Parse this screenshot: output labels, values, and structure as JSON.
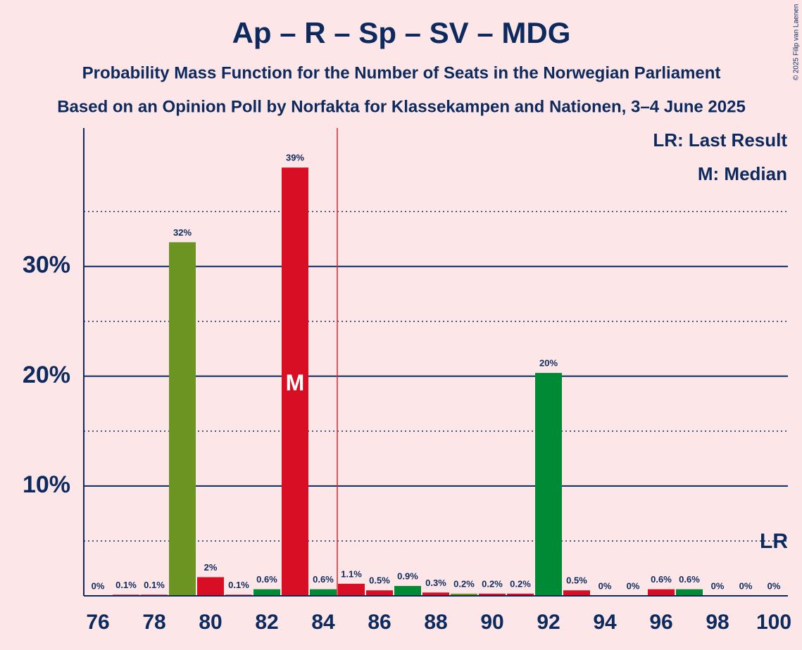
{
  "chart_data": {
    "type": "bar",
    "title": "Ap – R – Sp – SV – MDG",
    "subtitle": "Probability Mass Function for the Number of Seats in the Norwegian Parliament",
    "subtitle2": "Based on an Opinion Poll by Norfakta for Klassekampen and Nationen, 3–4 June 2025",
    "copyright": "© 2025 Filip van Laenen",
    "x": [
      76,
      77,
      78,
      79,
      80,
      81,
      82,
      83,
      84,
      85,
      86,
      87,
      88,
      89,
      90,
      91,
      92,
      93,
      94,
      95,
      96,
      97,
      98,
      99,
      100
    ],
    "values": [
      0,
      0.1,
      0.1,
      32.2,
      1.7,
      0.1,
      0.6,
      39,
      0.6,
      1.1,
      0.5,
      0.9,
      0.3,
      0.2,
      0.2,
      0.2,
      20.3,
      0.5,
      0,
      0,
      0.6,
      0.6,
      0,
      0,
      0
    ],
    "value_labels": [
      "0%",
      "0.1%",
      "0.1%",
      "32%",
      "2%",
      "0.1%",
      "0.6%",
      "39%",
      "0.6%",
      "1.1%",
      "0.5%",
      "0.9%",
      "0.3%",
      "0.2%",
      "0.2%",
      "0.2%",
      "20%",
      "0.5%",
      "0%",
      "0%",
      "0.6%",
      "0.6%",
      "0%",
      "0%",
      "0%"
    ],
    "colors": [
      "#d80f24",
      "#d80f24",
      "#d80f24",
      "#6b9423",
      "#d80f24",
      "#d80f24",
      "#008a35",
      "#d80f24",
      "#008a35",
      "#d80f24",
      "#d80f24",
      "#008a35",
      "#d80f24",
      "#6b9423",
      "#d80f24",
      "#d80f24",
      "#008a35",
      "#d80f24",
      "#d80f24",
      "#d80f24",
      "#d80f24",
      "#008a35",
      "#d80f24",
      "#d80f24",
      "#d80f24"
    ],
    "xlim": [
      75.5,
      100.5
    ],
    "xticks": [
      76,
      78,
      80,
      82,
      84,
      86,
      88,
      90,
      92,
      94,
      96,
      98,
      100
    ],
    "ylim": [
      0,
      42.6
    ],
    "yticks": [
      {
        "value": 10,
        "label": "10%"
      },
      {
        "value": 20,
        "label": "20%"
      },
      {
        "value": 30,
        "label": "30%"
      }
    ],
    "minor_yticks": [
      5,
      15,
      25,
      35
    ],
    "threshold": 84.5,
    "median": 83,
    "median_label": "M",
    "last_result": 100,
    "last_result_label": "LR",
    "legend": [
      "LR: Last Result",
      "M: Median"
    ]
  }
}
